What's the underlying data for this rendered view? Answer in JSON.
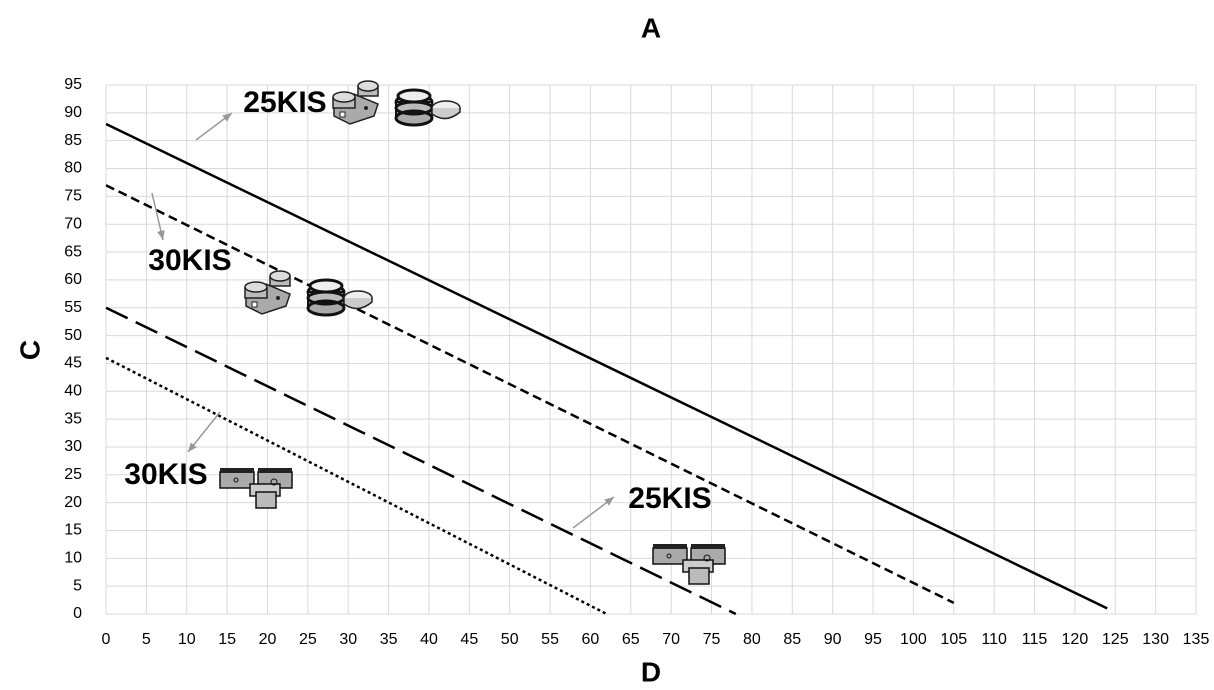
{
  "chart_data": {
    "type": "line",
    "title": "A",
    "x_label": "D",
    "y_label": "C",
    "xlim": [
      0,
      135
    ],
    "ylim": [
      0,
      95
    ],
    "xticks": [
      0,
      5,
      10,
      15,
      20,
      25,
      30,
      35,
      40,
      45,
      50,
      55,
      60,
      65,
      70,
      75,
      80,
      85,
      90,
      95,
      100,
      105,
      110,
      115,
      120,
      125,
      130,
      135
    ],
    "yticks": [
      0,
      5,
      10,
      15,
      20,
      25,
      30,
      35,
      40,
      45,
      50,
      55,
      60,
      65,
      70,
      75,
      80,
      85,
      90,
      95
    ],
    "grid": true,
    "series": [
      {
        "color": "#000000",
        "style": "solid",
        "x": [
          0,
          124
        ],
        "values": [
          88,
          1
        ]
      },
      {
        "color": "#000000",
        "style": "dashed",
        "x": [
          0,
          105
        ],
        "values": [
          77,
          2
        ]
      },
      {
        "color": "#000000",
        "style": "longdash",
        "x": [
          0,
          78
        ],
        "values": [
          55,
          0
        ]
      },
      {
        "color": "#000000",
        "style": "dotted",
        "x": [
          0,
          62
        ],
        "values": [
          46,
          0
        ]
      }
    ],
    "annotations": [
      "25KIS",
      "30KIS",
      "30KIS",
      "25KIS"
    ]
  }
}
